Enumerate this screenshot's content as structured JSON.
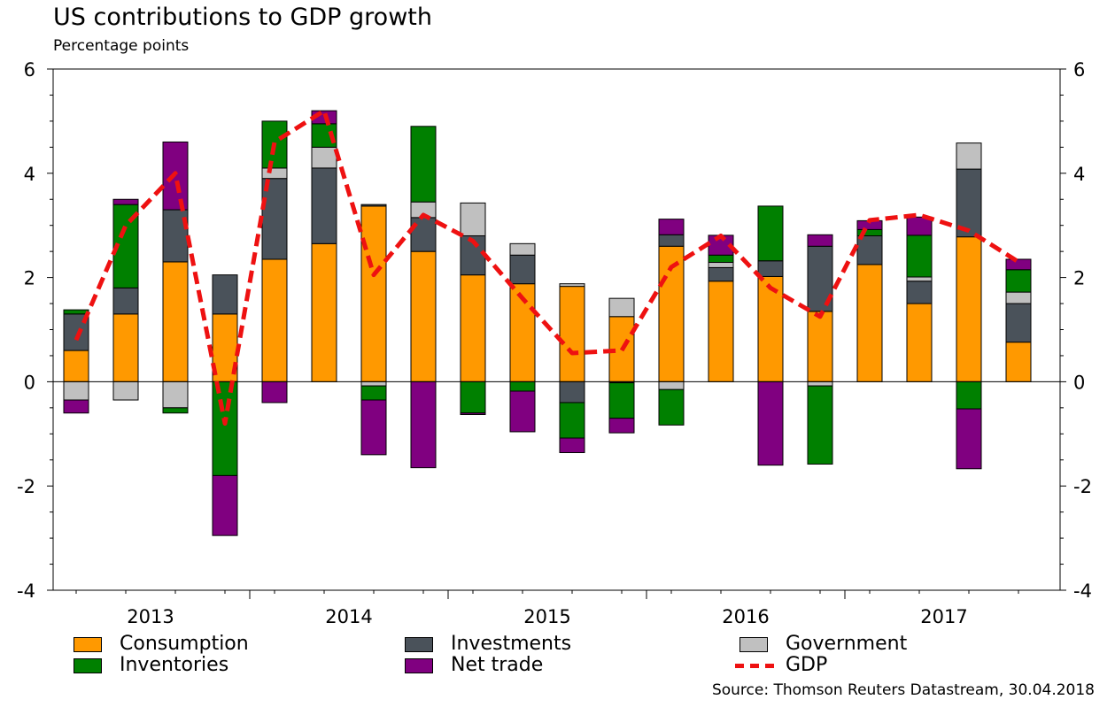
{
  "header": {
    "title": "US contributions to GDP growth",
    "subtitle": "Percentage points"
  },
  "source": "Source: Thomson Reuters Datastream, 30.04.2018",
  "legend": [
    {
      "key": "consumption",
      "label": "Consumption",
      "color": "#ff9900",
      "kind": "bar"
    },
    {
      "key": "investments",
      "label": "Investments",
      "color": "#4a525a",
      "kind": "bar"
    },
    {
      "key": "government",
      "label": "Government",
      "color": "#c0c0c0",
      "kind": "bar"
    },
    {
      "key": "inventories",
      "label": "Inventories",
      "color": "#008000",
      "kind": "bar"
    },
    {
      "key": "net_trade",
      "label": "Net trade",
      "color": "#800080",
      "kind": "bar"
    },
    {
      "key": "gdp",
      "label": "GDP",
      "color": "#ee1111",
      "kind": "line"
    }
  ],
  "chart_data": {
    "type": "bar",
    "stacked": true,
    "ylim": [
      -4,
      6
    ],
    "yticks": [
      -4,
      -2,
      0,
      2,
      4,
      6
    ],
    "year_labels": [
      "2013",
      "2014",
      "2015",
      "2016",
      "2017"
    ],
    "categories": [
      "2013 Q1",
      "2013 Q2",
      "2013 Q3",
      "2013 Q4",
      "2014 Q1",
      "2014 Q2",
      "2014 Q3",
      "2014 Q4",
      "2015 Q1",
      "2015 Q2",
      "2015 Q3",
      "2015 Q4",
      "2016 Q1",
      "2016 Q2",
      "2016 Q3",
      "2016 Q4",
      "2017 Q1",
      "2017 Q2",
      "2017 Q3",
      "2017 Q4"
    ],
    "series": [
      {
        "name": "Consumption",
        "values": [
          0.6,
          1.3,
          2.3,
          1.3,
          2.35,
          2.65,
          3.37,
          2.5,
          2.05,
          1.88,
          1.83,
          1.25,
          2.6,
          1.93,
          2.02,
          1.35,
          2.25,
          1.5,
          2.78,
          0.76
        ]
      },
      {
        "name": "Investments",
        "values": [
          0.7,
          0.5,
          1.0,
          0.75,
          1.55,
          1.45,
          0.03,
          0.65,
          0.75,
          0.55,
          -0.4,
          -0.02,
          0.22,
          0.26,
          0.3,
          1.25,
          0.55,
          0.43,
          1.3,
          0.74
        ]
      },
      {
        "name": "Government",
        "values": [
          -0.35,
          -0.35,
          -0.5,
          0.0,
          0.2,
          0.4,
          -0.08,
          0.3,
          0.63,
          0.22,
          0.05,
          0.35,
          -0.15,
          0.1,
          0.0,
          -0.08,
          0.0,
          0.08,
          0.5,
          0.22
        ]
      },
      {
        "name": "Inventories",
        "values": [
          0.08,
          1.6,
          -0.1,
          -1.8,
          0.9,
          0.45,
          -0.27,
          1.45,
          -0.6,
          -0.18,
          -0.68,
          -0.68,
          -0.68,
          0.14,
          1.05,
          -1.5,
          0.12,
          0.8,
          -0.52,
          0.43
        ]
      },
      {
        "name": "Net trade",
        "values": [
          -0.25,
          0.1,
          1.3,
          -1.15,
          -0.4,
          0.25,
          -1.05,
          -1.65,
          -0.03,
          -0.78,
          -0.28,
          -0.28,
          0.3,
          0.38,
          -1.6,
          0.22,
          0.17,
          0.35,
          -1.15,
          0.2
        ]
      }
    ],
    "line": {
      "name": "GDP",
      "values": [
        0.8,
        3.0,
        4.0,
        -0.8,
        4.6,
        5.2,
        2.05,
        3.2,
        2.7,
        1.6,
        0.55,
        0.6,
        2.2,
        2.8,
        1.8,
        1.25,
        3.1,
        3.2,
        2.9,
        2.3
      ]
    }
  }
}
